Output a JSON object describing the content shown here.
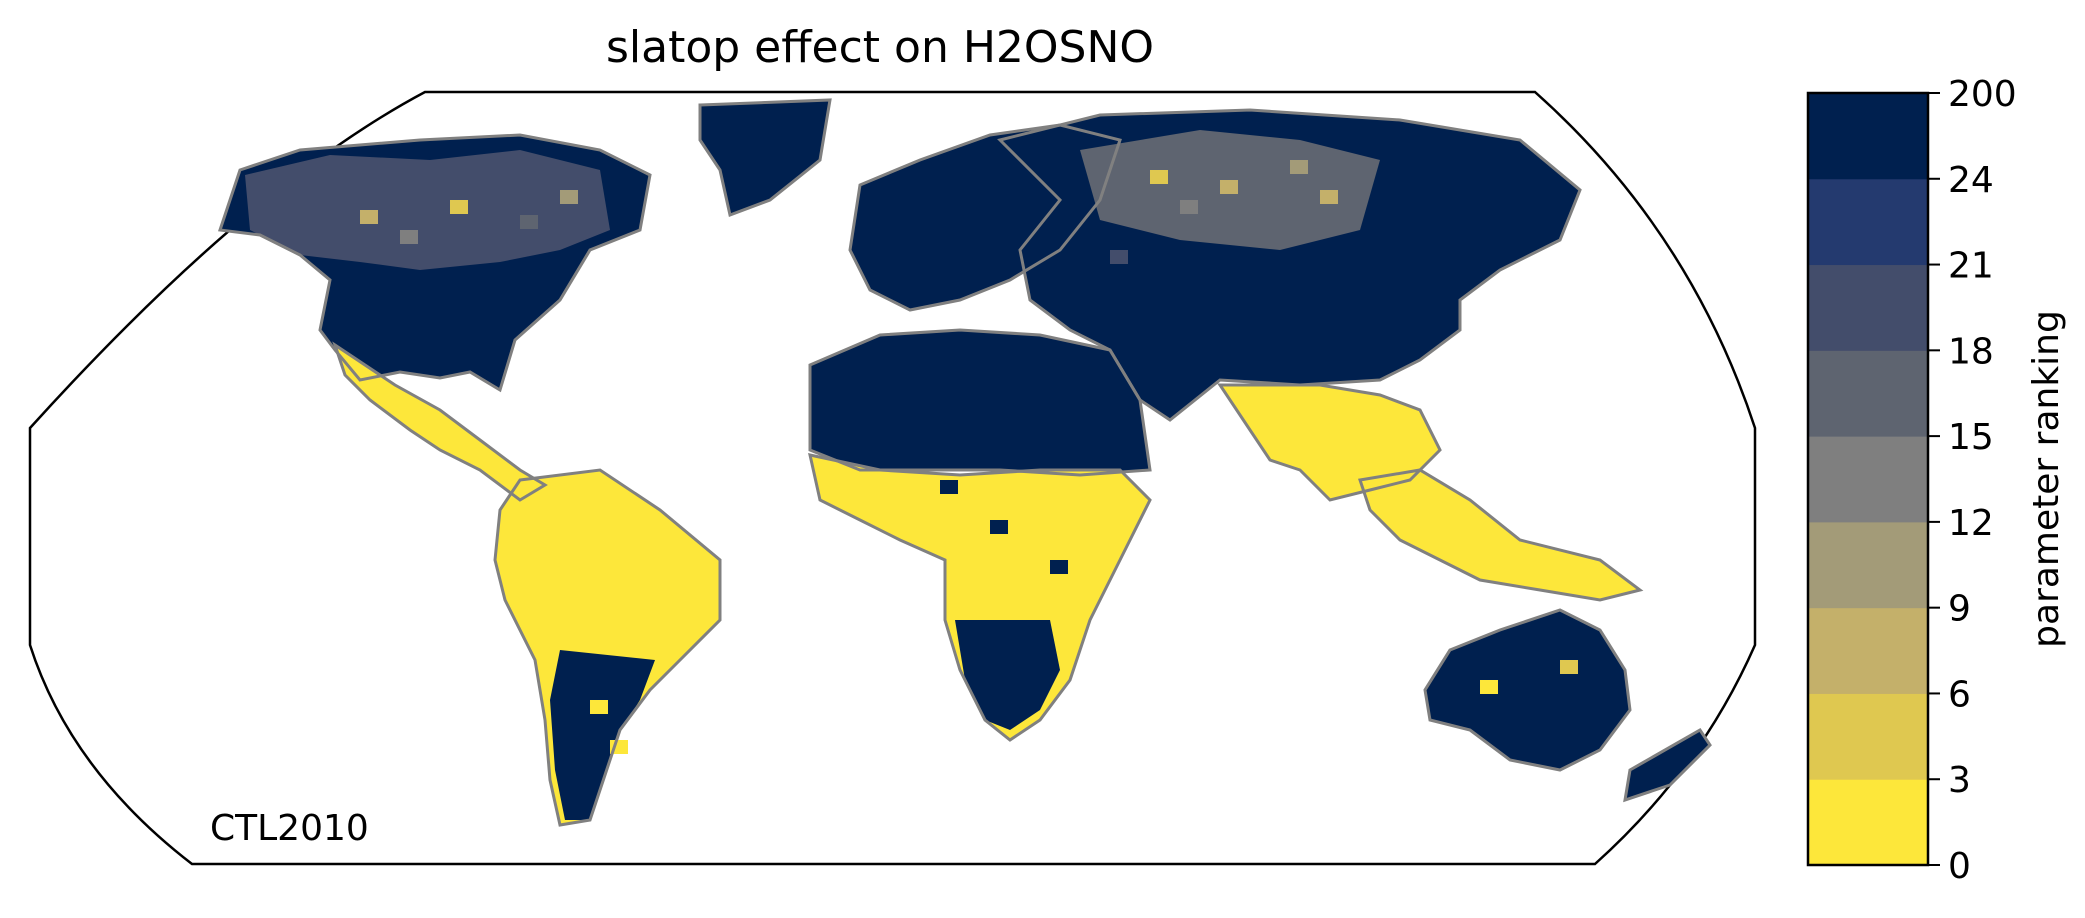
{
  "title": "slatop effect on H2OSNO",
  "run_label": "CTL2010",
  "colorbar": {
    "label": "parameter ranking",
    "ticks": [
      "0",
      "3",
      "6",
      "9",
      "12",
      "15",
      "18",
      "21",
      "24",
      "200"
    ],
    "colors": [
      "#fde73a",
      "#dfc850",
      "#c4b06a",
      "#a39b78",
      "#7f7f7f",
      "#5e6470",
      "#434d6b",
      "#243a6f",
      "#00204f"
    ]
  },
  "map": {
    "projection": "Robinson",
    "outline_color": "#000000",
    "coastline_color": "#808080"
  },
  "regions": [
    {
      "name": "north-america",
      "color_index": 8
    },
    {
      "name": "canada-mixed",
      "color_index": 6
    },
    {
      "name": "greenland",
      "color_index": 8
    },
    {
      "name": "central-america",
      "color_index": 0
    },
    {
      "name": "south-america",
      "color_index": 0
    },
    {
      "name": "patagonia",
      "color_index": 8
    },
    {
      "name": "europe",
      "color_index": 8
    },
    {
      "name": "north-africa",
      "color_index": 8
    },
    {
      "name": "sub-saharan-africa",
      "color_index": 0
    },
    {
      "name": "southern-africa",
      "color_index": 8
    },
    {
      "name": "russia-asia",
      "color_index": 8
    },
    {
      "name": "siberia-mixed",
      "color_index": 5
    },
    {
      "name": "south-asia",
      "color_index": 0
    },
    {
      "name": "southeast-asia",
      "color_index": 0
    },
    {
      "name": "australia",
      "color_index": 8
    },
    {
      "name": "new-zealand",
      "color_index": 8
    }
  ]
}
